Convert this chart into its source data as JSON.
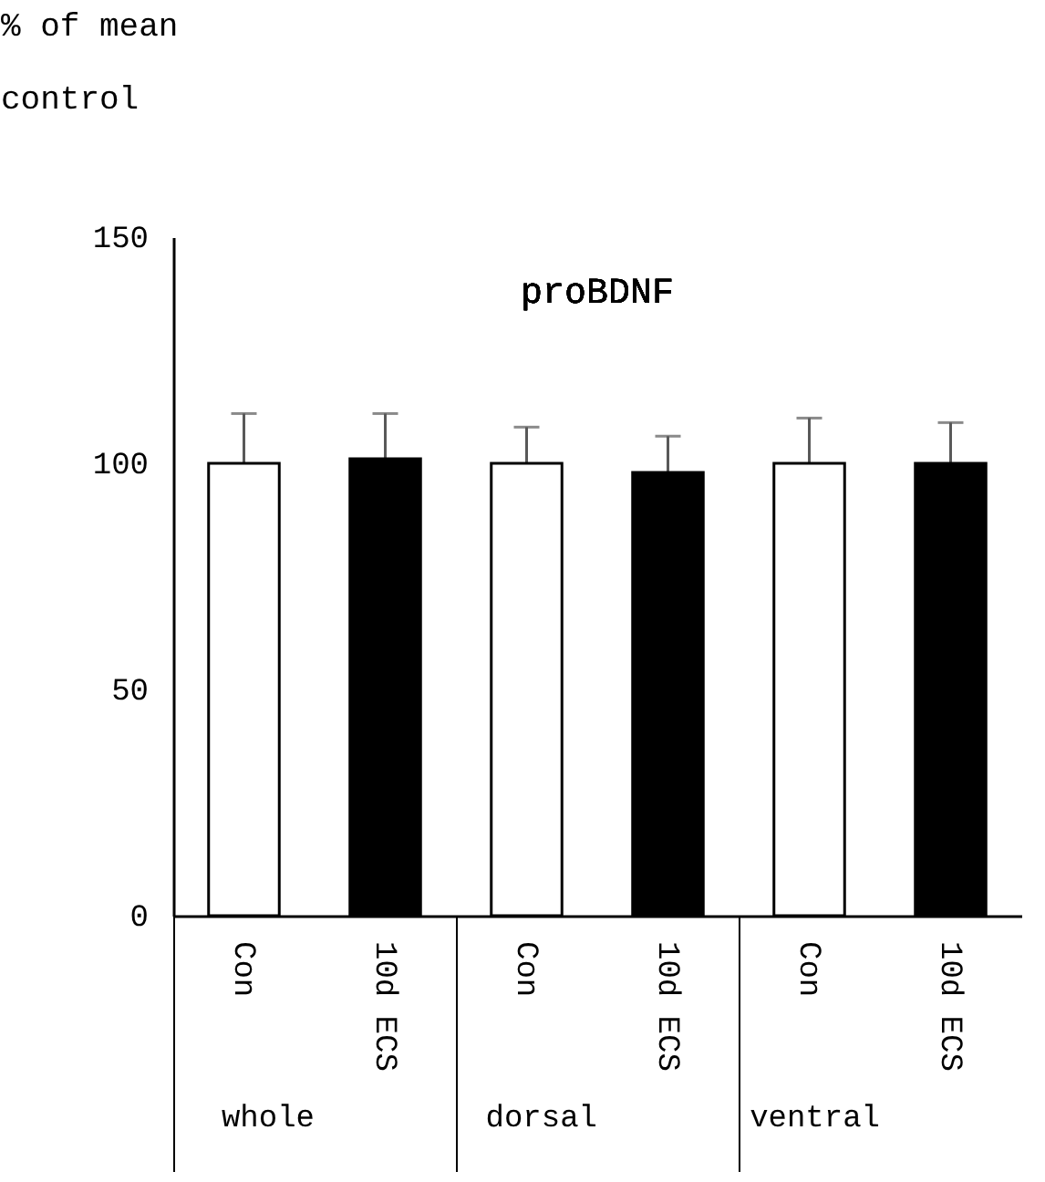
{
  "chart_data": {
    "type": "bar",
    "title": "proBDNF",
    "ylabel": "% of mean control",
    "categories": [
      "whole",
      "dorsal",
      "ventral"
    ],
    "series": [
      {
        "name": "Con",
        "color": "#ffffff",
        "values": [
          100,
          100,
          100
        ],
        "errors": [
          [
            100,
            111
          ],
          [
            100,
            108
          ],
          [
            100,
            110
          ]
        ]
      },
      {
        "name": "10d ECS",
        "color": "#000000",
        "values": [
          101,
          98,
          100
        ],
        "errors": [
          [
            101,
            111
          ],
          [
            98,
            106
          ],
          [
            100,
            109
          ]
        ]
      }
    ],
    "ylim": [
      0,
      150
    ],
    "yticks": [
      0,
      50,
      100,
      150
    ],
    "grid": false,
    "legend": false
  }
}
